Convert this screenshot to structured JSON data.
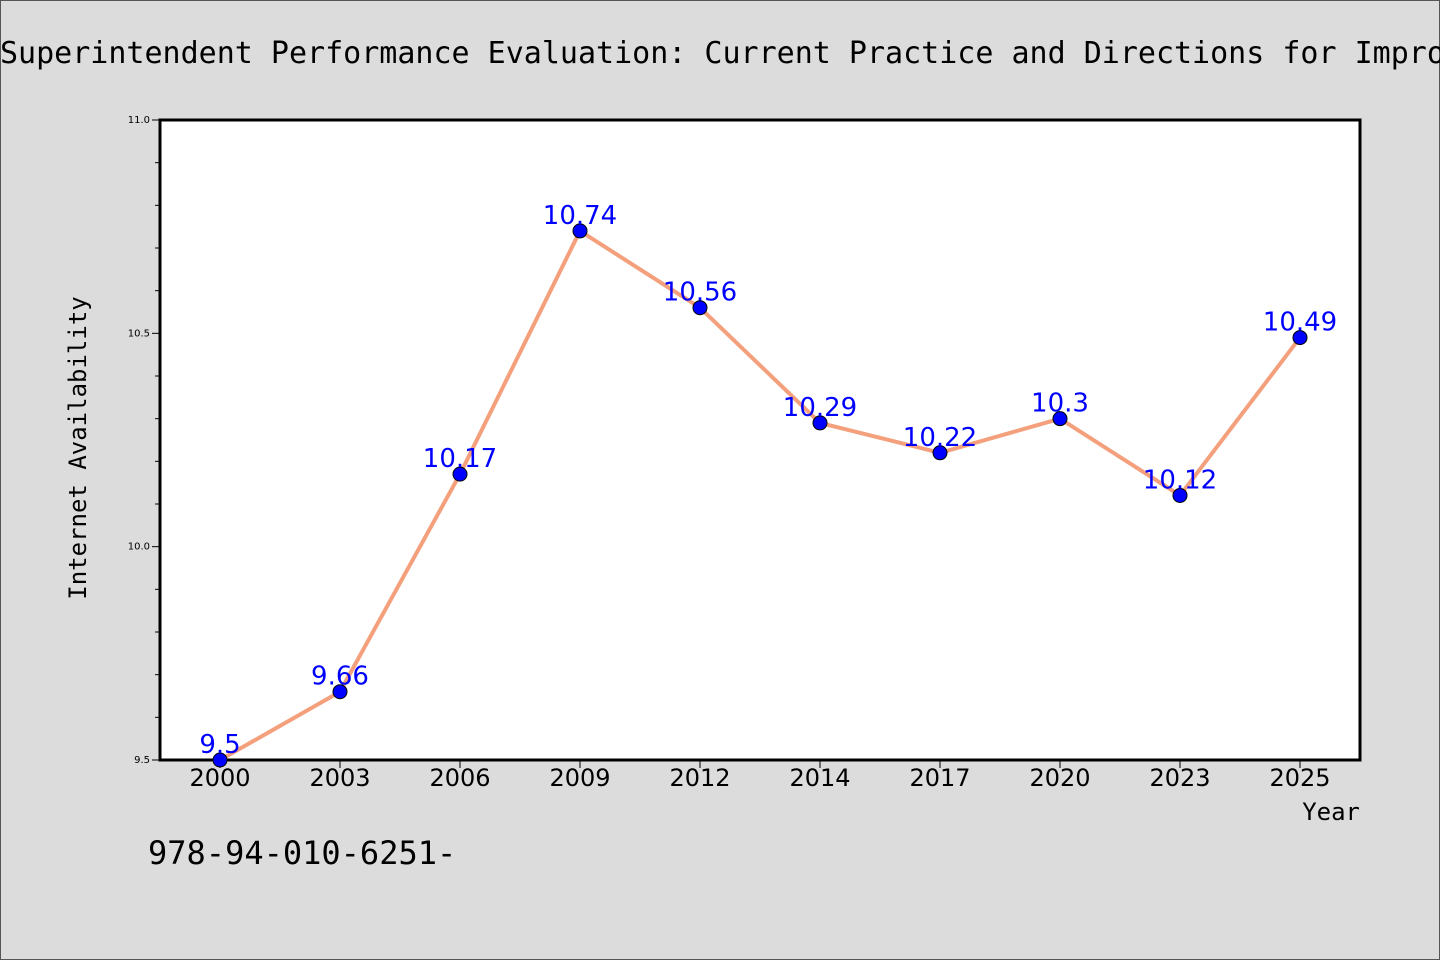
{
  "chart_data": {
    "type": "line",
    "title": "Superintendent Performance Evaluation: Current Practice and Directions for Improvement",
    "xlabel": "Year",
    "ylabel": "Internet Availability",
    "categories": [
      "2000",
      "2003",
      "2006",
      "2009",
      "2012",
      "2014",
      "2017",
      "2020",
      "2023",
      "2025"
    ],
    "series": [
      {
        "values": [
          9.5,
          9.66,
          10.17,
          10.74,
          10.56,
          10.29,
          10.22,
          10.3,
          10.12,
          10.49
        ],
        "labels": [
          "9.5",
          "9.66",
          "10.17",
          "10.74",
          "10.56",
          "10.29",
          "10.22",
          "10.3",
          "10.12",
          "10.49"
        ]
      }
    ],
    "ylim": [
      9.5,
      11.0
    ],
    "yticks": [
      9.5,
      10.0,
      10.5,
      11.0
    ],
    "ytick_labels": [
      "9.5",
      "10.0",
      "10.5",
      "11.0"
    ],
    "grid": false,
    "line_color": "#f4a07c",
    "marker_color": "#0000ff",
    "label_color": "#0000ff",
    "annotation": "978-94-010-6251-"
  }
}
